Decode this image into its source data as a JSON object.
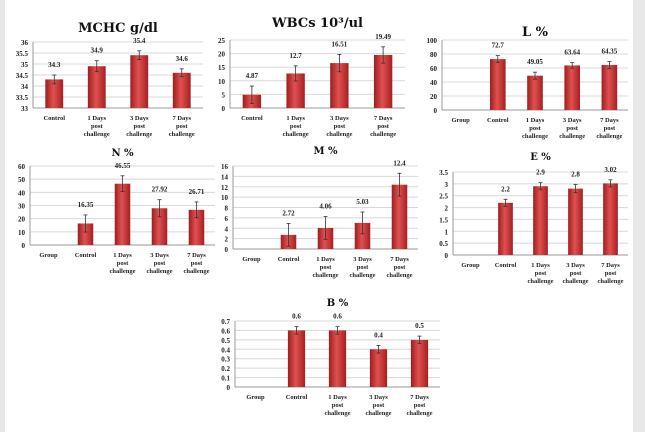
{
  "bar_color": "#c0282a",
  "chart_data": [
    {
      "type": "bar",
      "title": "MCHC g/dl",
      "categories": [
        "Control",
        "1 Days post challenge",
        "3 Days post challenge",
        "7 Days post challenge"
      ],
      "values": [
        34.3,
        34.9,
        35.4,
        34.6
      ],
      "data_labels": [
        "34.3",
        "34.9",
        "35.4",
        "34.6"
      ],
      "errors": [
        0.2,
        0.25,
        0.2,
        0.18
      ],
      "ylim": [
        33,
        36
      ],
      "yticks": [
        "33",
        "33.5",
        "34",
        "34.5",
        "35",
        "35.5",
        "36"
      ],
      "grid": true
    },
    {
      "type": "bar",
      "title": "WBCs 10³/ul",
      "categories": [
        "Control",
        "1 Days post challenge",
        "3 Days post challenge",
        "7 Days post challenge"
      ],
      "values": [
        4.87,
        12.7,
        16.51,
        19.49
      ],
      "data_labels": [
        "4.87",
        "12.7",
        "16.51",
        "19.49"
      ],
      "errors": [
        3.2,
        2.8,
        3.2,
        3.0
      ],
      "ylim": [
        0,
        25
      ],
      "yticks": [
        "0",
        "5",
        "10",
        "15",
        "20",
        "25"
      ],
      "grid": true
    },
    {
      "type": "bar",
      "title": "L %",
      "categories": [
        "Group",
        "Control",
        "1 Days post challenge",
        "3 Days post challenge",
        "7 Days post challenge"
      ],
      "values": [
        null,
        72.7,
        49.05,
        63.64,
        64.35
      ],
      "data_labels": [
        "",
        "72.7",
        "49.05",
        "63.64",
        "64.35"
      ],
      "errors": [
        0,
        5,
        5,
        4,
        5
      ],
      "ylim": [
        0,
        100
      ],
      "yticks": [
        "0",
        "20",
        "40",
        "60",
        "80",
        "100"
      ],
      "grid": true
    },
    {
      "type": "bar",
      "title": "N %",
      "categories": [
        "Group",
        "Control",
        "1 Days post challenge",
        "3 Days post challenge",
        "7 Days post challenge"
      ],
      "values": [
        null,
        16.35,
        46.55,
        27.92,
        26.71
      ],
      "data_labels": [
        "",
        "16.35",
        "46.55",
        "27.92",
        "26.71"
      ],
      "errors": [
        0,
        6.5,
        6,
        6.5,
        6
      ],
      "ylim": [
        0,
        60
      ],
      "yticks": [
        "0",
        "10",
        "20",
        "30",
        "40",
        "50",
        "60"
      ],
      "grid": true
    },
    {
      "type": "bar",
      "title": "M %",
      "categories": [
        "Group",
        "Control",
        "1 Days post challenge",
        "3 Days post challenge",
        "7 Days post challenge"
      ],
      "values": [
        null,
        2.72,
        4.06,
        5.03,
        12.4
      ],
      "data_labels": [
        "",
        "2.72",
        "4.06",
        "5.03",
        "12.4"
      ],
      "errors": [
        0,
        2.2,
        2.2,
        2.1,
        2.2
      ],
      "ylim": [
        0,
        16
      ],
      "yticks": [
        "0",
        "2",
        "4",
        "6",
        "8",
        "10",
        "12",
        "14",
        "16"
      ],
      "grid": true
    },
    {
      "type": "bar",
      "title": "E %",
      "categories": [
        "Group",
        "Control",
        "1 Days post challenge",
        "3 Days post challenge",
        "7 Days post challenge"
      ],
      "values": [
        null,
        2.2,
        2.9,
        2.8,
        3.02
      ],
      "data_labels": [
        "",
        "2.2",
        "2.9",
        "2.8",
        "3.02"
      ],
      "errors": [
        0,
        0.15,
        0.15,
        0.17,
        0.15
      ],
      "ylim": [
        0,
        3.5
      ],
      "yticks": [
        "0",
        "0.5",
        "1",
        "1.5",
        "2",
        "2.5",
        "3",
        "3.5"
      ],
      "grid": true
    },
    {
      "type": "bar",
      "title": "B %",
      "categories": [
        "Group",
        "Control",
        "1 Days post challenge",
        "3 Days post challenge",
        "7 Days post challenge"
      ],
      "values": [
        null,
        0.6,
        0.6,
        0.4,
        0.5
      ],
      "data_labels": [
        "",
        "0.6",
        "0.6",
        "0.4",
        "0.5"
      ],
      "errors": [
        0,
        0.04,
        0.04,
        0.04,
        0.04
      ],
      "ylim": [
        0,
        0.7
      ],
      "yticks": [
        "0",
        "0.1",
        "0.2",
        "0.3",
        "0.4",
        "0.5",
        "0.6",
        "0.7"
      ],
      "grid": true
    }
  ]
}
